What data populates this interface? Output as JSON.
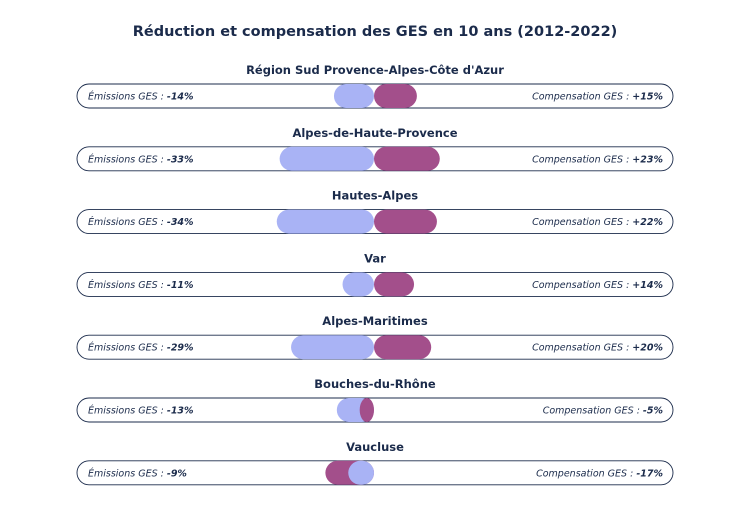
{
  "chart_data": {
    "type": "bar",
    "title": "Réduction et compensation des GES en 10 ans (2012-2022)",
    "emissions_label": "Émissions GES : ",
    "compensation_label": "Compensation GES : ",
    "colors": {
      "emissions": "#a9b3f5",
      "compensation": "#a34f8b",
      "outline": "#1b2b4b",
      "text": "#1b2b4b"
    },
    "xlim": [
      -40,
      40
    ],
    "series": [
      {
        "name": "Émissions GES",
        "key": "emissions"
      },
      {
        "name": "Compensation GES",
        "key": "compensation"
      }
    ],
    "rows": [
      {
        "region": "Région Sud Provence-Alpes-Côte d'Azur",
        "emissions": -14,
        "compensation": 15,
        "emissions_text": "-14%",
        "compensation_text": "+15%"
      },
      {
        "region": "Alpes-de-Haute-Provence",
        "emissions": -33,
        "compensation": 23,
        "emissions_text": "-33%",
        "compensation_text": "+23%"
      },
      {
        "region": "Hautes-Alpes",
        "emissions": -34,
        "compensation": 22,
        "emissions_text": "-34%",
        "compensation_text": "+22%"
      },
      {
        "region": "Var",
        "emissions": -11,
        "compensation": 14,
        "emissions_text": "-11%",
        "compensation_text": "+14%"
      },
      {
        "region": "Alpes-Maritimes",
        "emissions": -29,
        "compensation": 20,
        "emissions_text": "-29%",
        "compensation_text": "+20%"
      },
      {
        "region": "Bouches-du-Rhône",
        "emissions": -13,
        "compensation": -5,
        "emissions_text": "-13%",
        "compensation_text": "-5%"
      },
      {
        "region": "Vaucluse",
        "emissions": -9,
        "compensation": -17,
        "emissions_text": "-9%",
        "compensation_text": "-17%"
      }
    ]
  }
}
